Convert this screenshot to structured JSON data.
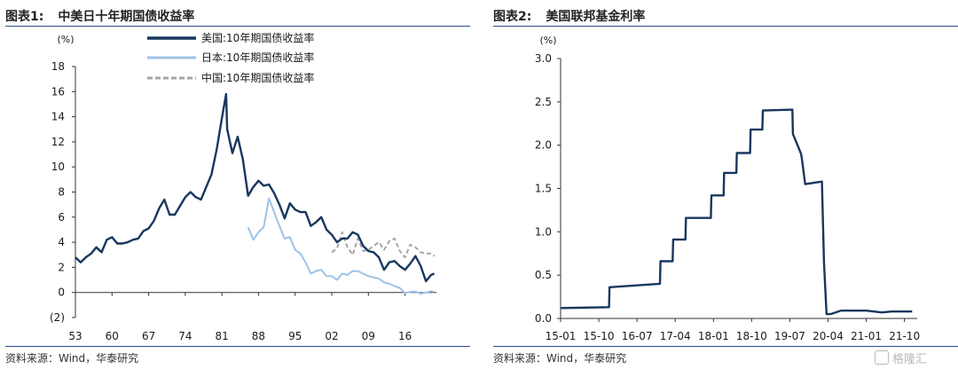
{
  "watermark": {
    "text": "格隆汇"
  },
  "panels": {
    "left": {
      "title_num": "图表1:",
      "title_text": "中美日十年期国债收益率",
      "source": "资料来源：Wind，华泰研究"
    },
    "right": {
      "title_num": "图表2:",
      "title_text": "美国联邦基金利率",
      "source": "资料来源：Wind，华泰研究"
    }
  },
  "chart_data": [
    {
      "type": "line",
      "ylabel": "(%)",
      "ylim": [
        -2,
        18
      ],
      "yticks": [
        -2,
        0,
        2,
        4,
        6,
        8,
        10,
        12,
        14,
        16,
        18
      ],
      "ytick_labels": [
        "(2)",
        "0",
        "2",
        "4",
        "6",
        "8",
        "10",
        "12",
        "14",
        "16",
        "18"
      ],
      "xlim": [
        1953,
        2022
      ],
      "xticks": [
        1953,
        1960,
        1967,
        1974,
        1981,
        1988,
        1995,
        2002,
        2009,
        2016
      ],
      "xtick_labels": [
        "53",
        "60",
        "67",
        "74",
        "81",
        "88",
        "95",
        "02",
        "09",
        "16"
      ],
      "legend_position": "top-center",
      "colors": {
        "us": "#17375e",
        "japan": "#9dc3e6",
        "china": "#a6a6a6"
      },
      "series": [
        {
          "name": "美国:10年期国债收益率",
          "style": "solid",
          "points": [
            [
              1953,
              2.8
            ],
            [
              1954,
              2.4
            ],
            [
              1955,
              2.8
            ],
            [
              1956,
              3.1
            ],
            [
              1957,
              3.6
            ],
            [
              1958,
              3.2
            ],
            [
              1959,
              4.2
            ],
            [
              1960,
              4.4
            ],
            [
              1961,
              3.9
            ],
            [
              1962,
              3.9
            ],
            [
              1963,
              4.0
            ],
            [
              1964,
              4.2
            ],
            [
              1965,
              4.3
            ],
            [
              1966,
              4.9
            ],
            [
              1967,
              5.1
            ],
            [
              1968,
              5.7
            ],
            [
              1969,
              6.7
            ],
            [
              1970,
              7.4
            ],
            [
              1971,
              6.2
            ],
            [
              1972,
              6.2
            ],
            [
              1973,
              6.9
            ],
            [
              1974,
              7.6
            ],
            [
              1975,
              8.0
            ],
            [
              1976,
              7.6
            ],
            [
              1977,
              7.4
            ],
            [
              1978,
              8.4
            ],
            [
              1979,
              9.4
            ],
            [
              1980,
              11.4
            ],
            [
              1981,
              13.9
            ],
            [
              1981.8,
              15.8
            ],
            [
              1982,
              13.0
            ],
            [
              1983,
              11.1
            ],
            [
              1984,
              12.4
            ],
            [
              1985,
              10.6
            ],
            [
              1986,
              7.7
            ],
            [
              1987,
              8.4
            ],
            [
              1988,
              8.9
            ],
            [
              1989,
              8.5
            ],
            [
              1990,
              8.6
            ],
            [
              1991,
              7.9
            ],
            [
              1992,
              7.0
            ],
            [
              1993,
              5.9
            ],
            [
              1994,
              7.1
            ],
            [
              1995,
              6.6
            ],
            [
              1996,
              6.4
            ],
            [
              1997,
              6.4
            ],
            [
              1998,
              5.3
            ],
            [
              1999,
              5.6
            ],
            [
              2000,
              6.0
            ],
            [
              2001,
              5.0
            ],
            [
              2002,
              4.6
            ],
            [
              2003,
              4.0
            ],
            [
              2004,
              4.3
            ],
            [
              2005,
              4.3
            ],
            [
              2006,
              4.8
            ],
            [
              2007,
              4.6
            ],
            [
              2008,
              3.7
            ],
            [
              2009,
              3.3
            ],
            [
              2010,
              3.2
            ],
            [
              2011,
              2.8
            ],
            [
              2012,
              1.8
            ],
            [
              2013,
              2.4
            ],
            [
              2014,
              2.5
            ],
            [
              2015,
              2.1
            ],
            [
              2016,
              1.8
            ],
            [
              2017,
              2.3
            ],
            [
              2018,
              2.9
            ],
            [
              2019,
              2.1
            ],
            [
              2020,
              0.9
            ],
            [
              2021,
              1.4
            ],
            [
              2021.6,
              1.5
            ]
          ]
        },
        {
          "name": "日本:10年期国债收益率",
          "style": "solid",
          "points": [
            [
              1986,
              5.2
            ],
            [
              1987,
              4.2
            ],
            [
              1988,
              4.8
            ],
            [
              1989,
              5.2
            ],
            [
              1990,
              7.5
            ],
            [
              1991,
              6.4
            ],
            [
              1992,
              5.3
            ],
            [
              1993,
              4.3
            ],
            [
              1994,
              4.4
            ],
            [
              1995,
              3.4
            ],
            [
              1996,
              3.1
            ],
            [
              1997,
              2.4
            ],
            [
              1998,
              1.5
            ],
            [
              1999,
              1.7
            ],
            [
              2000,
              1.8
            ],
            [
              2001,
              1.3
            ],
            [
              2002,
              1.3
            ],
            [
              2003,
              1.0
            ],
            [
              2004,
              1.5
            ],
            [
              2005,
              1.4
            ],
            [
              2006,
              1.7
            ],
            [
              2007,
              1.7
            ],
            [
              2008,
              1.5
            ],
            [
              2009,
              1.3
            ],
            [
              2010,
              1.2
            ],
            [
              2011,
              1.1
            ],
            [
              2012,
              0.8
            ],
            [
              2013,
              0.7
            ],
            [
              2014,
              0.5
            ],
            [
              2015,
              0.35
            ],
            [
              2016,
              -0.05
            ],
            [
              2017,
              0.05
            ],
            [
              2018,
              0.07
            ],
            [
              2019,
              -0.1
            ],
            [
              2020,
              0.0
            ],
            [
              2021,
              0.1
            ],
            [
              2021.6,
              0.05
            ]
          ]
        },
        {
          "name": "中国:10年期国债收益率",
          "style": "dashed",
          "points": [
            [
              2002,
              3.2
            ],
            [
              2003,
              3.5
            ],
            [
              2004,
              4.8
            ],
            [
              2005,
              3.6
            ],
            [
              2006,
              3.0
            ],
            [
              2007,
              4.3
            ],
            [
              2008,
              3.3
            ],
            [
              2009,
              3.4
            ],
            [
              2010,
              3.7
            ],
            [
              2011,
              4.0
            ],
            [
              2012,
              3.4
            ],
            [
              2013,
              4.1
            ],
            [
              2014,
              4.3
            ],
            [
              2015,
              3.3
            ],
            [
              2016,
              2.8
            ],
            [
              2017,
              3.8
            ],
            [
              2018,
              3.6
            ],
            [
              2019,
              3.2
            ],
            [
              2020,
              3.1
            ],
            [
              2021,
              3.1
            ],
            [
              2021.6,
              2.9
            ]
          ]
        }
      ]
    },
    {
      "type": "line",
      "ylabel": "(%)",
      "ylim": [
        0,
        3.0
      ],
      "yticks": [
        0,
        0.5,
        1.0,
        1.5,
        2.0,
        2.5,
        3.0
      ],
      "ytick_labels": [
        "0.0",
        "0.5",
        "1.0",
        "1.5",
        "2.0",
        "2.5",
        "3.0"
      ],
      "xlim": [
        2015.0,
        2022.0
      ],
      "xticks": [
        2015.0,
        2015.75,
        2016.5,
        2017.25,
        2018.0,
        2018.75,
        2019.5,
        2020.25,
        2021.0,
        2021.75
      ],
      "xtick_labels": [
        "15-01",
        "15-10",
        "16-07",
        "17-04",
        "18-01",
        "18-10",
        "19-07",
        "20-04",
        "21-01",
        "21-10"
      ],
      "color": "#17375e",
      "series": [
        {
          "name": "",
          "style": "solid",
          "points": [
            [
              2015.0,
              0.12
            ],
            [
              2015.95,
              0.13
            ],
            [
              2015.96,
              0.36
            ],
            [
              2016.95,
              0.4
            ],
            [
              2016.96,
              0.66
            ],
            [
              2017.2,
              0.66
            ],
            [
              2017.21,
              0.91
            ],
            [
              2017.45,
              0.91
            ],
            [
              2017.46,
              1.16
            ],
            [
              2017.95,
              1.16
            ],
            [
              2017.96,
              1.42
            ],
            [
              2018.2,
              1.42
            ],
            [
              2018.21,
              1.68
            ],
            [
              2018.45,
              1.68
            ],
            [
              2018.46,
              1.91
            ],
            [
              2018.72,
              1.91
            ],
            [
              2018.73,
              2.18
            ],
            [
              2018.96,
              2.18
            ],
            [
              2018.97,
              2.4
            ],
            [
              2019.55,
              2.41
            ],
            [
              2019.56,
              2.13
            ],
            [
              2019.72,
              1.9
            ],
            [
              2019.74,
              1.83
            ],
            [
              2019.8,
              1.55
            ],
            [
              2020.13,
              1.58
            ],
            [
              2020.17,
              0.65
            ],
            [
              2020.22,
              0.05
            ],
            [
              2020.3,
              0.05
            ],
            [
              2020.5,
              0.09
            ],
            [
              2021.0,
              0.09
            ],
            [
              2021.3,
              0.07
            ],
            [
              2021.5,
              0.08
            ],
            [
              2021.7,
              0.08
            ],
            [
              2021.9,
              0.08
            ]
          ]
        }
      ]
    }
  ]
}
